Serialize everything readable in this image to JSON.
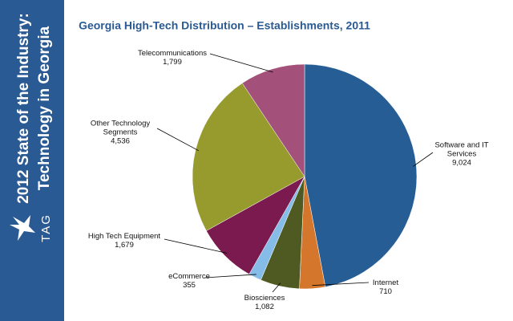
{
  "sidebar": {
    "heading": [
      "2012 State of the Industry:",
      "Technology in Georgia"
    ],
    "logo": "TAG"
  },
  "chart_data": {
    "type": "pie",
    "title": "Georgia High-Tech Distribution – Establishments, 2011",
    "categories": [
      "Software and IT Services",
      "Internet",
      "Biosciences",
      "eCommerce",
      "High Tech Equipment",
      "Other Technology Segments",
      "Telecommunications"
    ],
    "values": [
      9024,
      710,
      1082,
      355,
      1679,
      4536,
      1799
    ],
    "value_labels": [
      "9,024",
      "710",
      "1,082",
      "355",
      "1,679",
      "4,536",
      "1,799"
    ],
    "colors": [
      "#265d94",
      "#d4772c",
      "#4f5a22",
      "#86bde8",
      "#7a1a4f",
      "#979a2c",
      "#a3507a"
    ]
  }
}
